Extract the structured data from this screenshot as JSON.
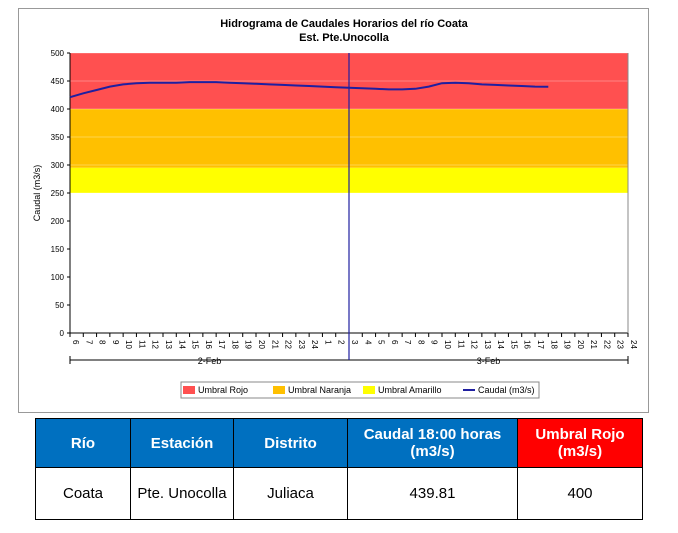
{
  "chart_data": {
    "type": "line",
    "title": "Hidrograma de Caudales Horarios del río Coata",
    "subtitle": "Est. Pte.Unocolla",
    "y_label": "Caudal  (m3/s)",
    "categories": [
      "6",
      "7",
      "8",
      "9",
      "10",
      "11",
      "12",
      "13",
      "14",
      "15",
      "16",
      "17",
      "18",
      "19",
      "20",
      "21",
      "22",
      "23",
      "24",
      "1",
      "2",
      "3",
      "4",
      "5",
      "6",
      "7",
      "8",
      "9",
      "10",
      "11",
      "12",
      "13",
      "14",
      "15",
      "16",
      "17",
      "18",
      "19",
      "20",
      "21",
      "22",
      "23",
      "24"
    ],
    "x_groups": [
      "2-Feb",
      "3-Feb"
    ],
    "ylim": [
      0,
      500
    ],
    "yticks": [
      0,
      50,
      100,
      150,
      200,
      250,
      300,
      350,
      400,
      450,
      500
    ],
    "grid": true,
    "legend": "bottom",
    "series": [
      {
        "name": "Umbral Rojo",
        "color": "#ff5050",
        "value": 400
      },
      {
        "name": "Umbral Naranja",
        "color": "#ffc000",
        "value": 295
      },
      {
        "name": "Umbral Amarillo",
        "color": "#ffff00",
        "value": 250
      },
      {
        "name": "Caudal (m3/s)",
        "color": "#1f1fa0",
        "values": [
          421,
          428,
          434,
          440,
          444,
          446,
          447,
          447,
          447,
          448,
          448,
          448,
          447,
          446,
          445,
          444,
          443,
          442,
          441,
          440,
          439,
          438,
          437,
          436,
          435,
          435,
          436,
          440,
          446,
          447,
          446,
          444,
          443,
          442,
          441,
          440,
          439.81,
          null,
          null,
          null,
          null,
          null,
          null
        ]
      }
    ]
  },
  "table": {
    "headers": [
      "Río",
      "Estación",
      "Distrito",
      "Caudal 18:00 horas (m3/s)",
      "Umbral Rojo (m3/s)"
    ],
    "rows": [
      [
        "Coata",
        "Pte. Unocolla",
        "Juliaca",
        "439.81",
        "400"
      ]
    ]
  }
}
